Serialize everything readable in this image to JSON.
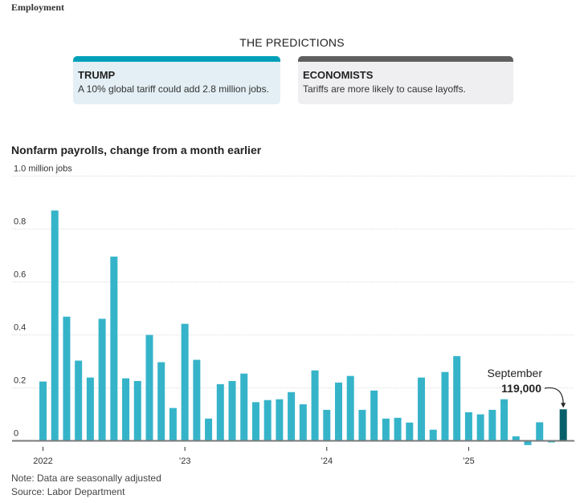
{
  "kicker": "Employment",
  "predictions": {
    "title": "THE PREDICTIONS",
    "cards": [
      {
        "name": "TRUMP",
        "text": "A 10% global tariff could add 2.8 million jobs.",
        "accent": "#00a0b8",
        "background": "#e3eff5"
      },
      {
        "name": "ECONOMISTS",
        "text": "Tariffs are more likely to cause layoffs.",
        "accent": "#5f5f5f",
        "background": "#efeff1"
      }
    ]
  },
  "chart_data": {
    "type": "bar",
    "title": "Nonfarm payrolls, change from a month earlier",
    "ylabel": "million jobs",
    "xlabel": "",
    "ylim": [
      -0.05,
      1.0
    ],
    "yticks": [
      0,
      0.2,
      0.4,
      0.6,
      0.8,
      1.0
    ],
    "ytick_labels": [
      "0",
      "0.2",
      "0.4",
      "0.6",
      "0.8",
      "1.0 million jobs"
    ],
    "grid": true,
    "xtick_labels": [
      {
        "label": "2022",
        "index": 0
      },
      {
        "label": "’23",
        "index": 12
      },
      {
        "label": "’24",
        "index": 24
      },
      {
        "label": "’25",
        "index": 36
      }
    ],
    "categories": [
      "Jan 2022",
      "Feb 2022",
      "Mar 2022",
      "Apr 2022",
      "May 2022",
      "Jun 2022",
      "Jul 2022",
      "Aug 2022",
      "Sep 2022",
      "Oct 2022",
      "Nov 2022",
      "Dec 2022",
      "Jan 2023",
      "Feb 2023",
      "Mar 2023",
      "Apr 2023",
      "May 2023",
      "Jun 2023",
      "Jul 2023",
      "Aug 2023",
      "Sep 2023",
      "Oct 2023",
      "Nov 2023",
      "Dec 2023",
      "Jan 2024",
      "Feb 2024",
      "Mar 2024",
      "Apr 2024",
      "May 2024",
      "Jun 2024",
      "Jul 2024",
      "Aug 2024",
      "Sep 2024",
      "Oct 2024",
      "Nov 2024",
      "Dec 2024",
      "Jan 2025",
      "Feb 2025",
      "Mar 2025",
      "Apr 2025",
      "May 2025",
      "Jun 2025",
      "Jul 2025",
      "Aug 2025",
      "Sep 2025"
    ],
    "values": [
      0.224,
      0.87,
      0.469,
      0.303,
      0.239,
      0.461,
      0.696,
      0.236,
      0.226,
      0.4,
      0.297,
      0.124,
      0.442,
      0.306,
      0.084,
      0.214,
      0.226,
      0.254,
      0.146,
      0.154,
      0.157,
      0.184,
      0.138,
      0.266,
      0.117,
      0.22,
      0.245,
      0.117,
      0.19,
      0.084,
      0.087,
      0.069,
      0.239,
      0.042,
      0.26,
      0.32,
      0.108,
      0.1,
      0.117,
      0.157,
      0.017,
      -0.016,
      0.07,
      -0.006,
      0.119
    ],
    "colors": {
      "bar": "#35b4c9",
      "highlight": "#08606a",
      "grid": "#e6e6e6",
      "baseline": "#7a7a7a"
    },
    "highlight_index": 44,
    "annotation": {
      "label": "September",
      "value": "119,000",
      "index": 44
    }
  },
  "footer": {
    "note": "Note: Data are seasonally adjusted",
    "source": "Source: Labor Department"
  }
}
